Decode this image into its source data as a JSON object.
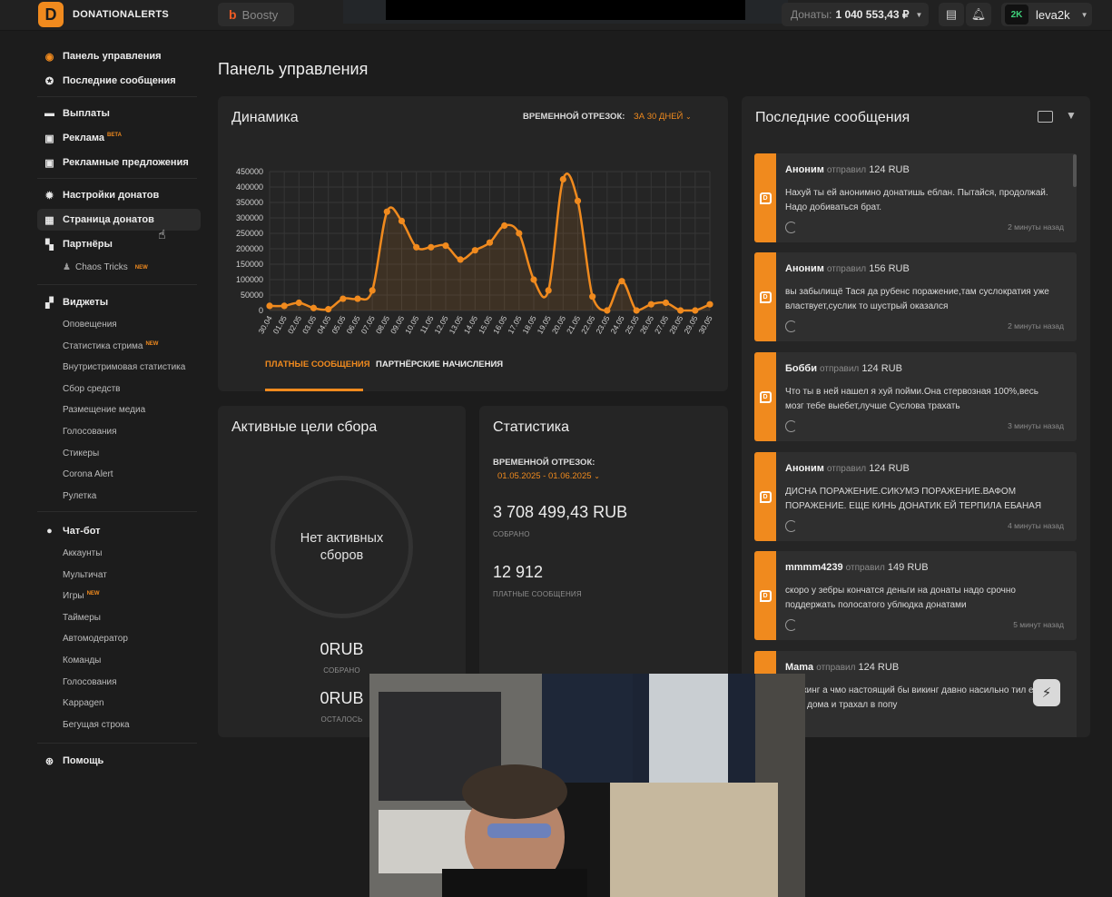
{
  "brand": {
    "name": "DONATIONALERTS",
    "logo_letter": "D",
    "accent": "#f08a1e"
  },
  "topbar": {
    "boosty": "Boosty",
    "balance_label": "Донаты:",
    "balance_value": "1 040 553,43 ₽",
    "user_avatar": "2K",
    "username": "leva2k"
  },
  "sidebar": {
    "items": [
      {
        "label": "Панель управления",
        "icon": "dashboard-icon"
      },
      {
        "label": "Последние сообщения",
        "icon": "star-icon"
      },
      {
        "label": "Выплаты",
        "icon": "wallet-icon"
      },
      {
        "label": "Реклама",
        "badge": "BETA",
        "icon": "briefcase-icon"
      },
      {
        "label": "Рекламные предложения",
        "icon": "briefcase-icon"
      },
      {
        "label": "Настройки донатов",
        "icon": "gear-icon"
      },
      {
        "label": "Страница донатов",
        "icon": "page-icon"
      },
      {
        "label": "Партнёры",
        "icon": "partners-icon"
      },
      {
        "label": "Виджеты",
        "icon": "widgets-icon"
      },
      {
        "label": "Чат-бот",
        "icon": "chat-icon"
      },
      {
        "label": "Помощь",
        "icon": "lifebuoy-icon"
      }
    ],
    "partners_sub": [
      {
        "label": "Chaos Tricks",
        "badge": "NEW"
      }
    ],
    "widgets_sub": [
      {
        "label": "Оповещения"
      },
      {
        "label": "Статистика стрима",
        "badge": "NEW"
      },
      {
        "label": "Внутристримовая статистика"
      },
      {
        "label": "Сбор средств"
      },
      {
        "label": "Размещение медиа"
      },
      {
        "label": "Голосования"
      },
      {
        "label": "Стикеры"
      },
      {
        "label": "Corona Alert"
      },
      {
        "label": "Рулетка"
      }
    ],
    "chatbot_sub": [
      {
        "label": "Аккаунты"
      },
      {
        "label": "Мультичат"
      },
      {
        "label": "Игры",
        "badge": "NEW"
      },
      {
        "label": "Таймеры"
      },
      {
        "label": "Автомодератор"
      },
      {
        "label": "Команды"
      },
      {
        "label": "Голосования"
      },
      {
        "label": "Kappagen"
      },
      {
        "label": "Бегущая строка"
      }
    ]
  },
  "main": {
    "page_title": "Панель управления",
    "dynamics": {
      "title": "Динамика",
      "range_label": "ВРЕМЕННОЙ ОТРЕЗОК:",
      "range_value": "ЗА 30 ДНЕЙ",
      "tab_paid": "ПЛАТНЫЕ СООБЩЕНИЯ",
      "tab_partner": "ПАРТНЁРСКИЕ НАЧИСЛЕНИЯ"
    },
    "goals": {
      "title": "Активные цели сбора",
      "empty": "Нет активных сборов",
      "collected_value": "0RUB",
      "collected_label": "СОБРАНО",
      "left_value": "0RUB",
      "left_label": "ОСТАЛОСЬ"
    },
    "stats": {
      "title": "Статистика",
      "range_label": "ВРЕМЕННОЙ ОТРЕЗОК:",
      "range_value": "01.05.2025 - 01.06.2025",
      "collected_value": "3 708 499,43 RUB",
      "collected_label": "СОБРАНО",
      "messages_value": "12 912",
      "messages_label": "ПЛАТНЫЕ СООБЩЕНИЯ"
    },
    "messages": {
      "title": "Последние сообщения",
      "action": "отправил",
      "items": [
        {
          "name": "Аноним",
          "amount": "124 RUB",
          "text": "Нахуй ты ей анонимно донатишь еблан. Пытайся, продолжай. Надо добиваться брат.",
          "time": "2 минуты назад"
        },
        {
          "name": "Аноним",
          "amount": "156 RUB",
          "text": "вы забылищё Тася да рубенс поражение,там суслократия уже властвует,суслик то шустрый оказался",
          "time": "2 минуты назад"
        },
        {
          "name": "Бобби",
          "amount": "124 RUB",
          "text": "Что ты в ней нашел я хуй пойми.Она стервозная 100%,весь мозг тебе выебет,лучше Суслова трахать",
          "time": "3 минуты назад"
        },
        {
          "name": "Аноним",
          "amount": "124 RUB",
          "text": "ДИСНА ПОРАЖЕНИЕ.СИКУМЭ ПОРАЖЕНИЕ.ВАФОМ ПОРАЖЕНИЕ. ЕЩЕ КИНЬ ДОНАТИК ЕЙ ТЕРПИЛА ЕБАНАЯ",
          "time": "4 минуты назад"
        },
        {
          "name": "mmmm4239",
          "amount": "149 RUB",
          "text": "скоро у зебры кончатся деньги на донаты надо срочно поддержать полосатого ублюдка донатами",
          "time": "5 минут назад"
        },
        {
          "name": "Mama",
          "amount": "124 RUB",
          "text": "е викинг а чмо настоящий бы викинг давно насильно тил её у себя дома и трахал в попу",
          "time": ""
        }
      ]
    }
  },
  "chart_data": {
    "type": "line",
    "title": "",
    "xlabel": "",
    "ylabel": "",
    "ylim": [
      0,
      450000
    ],
    "yticks": [
      0,
      50000,
      100000,
      150000,
      200000,
      250000,
      300000,
      350000,
      400000,
      450000
    ],
    "color": "#f08a1e",
    "categories": [
      "30.04",
      "01.05",
      "02.05",
      "03.05",
      "04.05",
      "05.05",
      "06.05",
      "07.05",
      "08.05",
      "09.05",
      "10.05",
      "11.05",
      "12.05",
      "13.05",
      "14.05",
      "15.05",
      "16.05",
      "17.05",
      "18.05",
      "19.05",
      "20.05",
      "21.05",
      "22.05",
      "23.05",
      "24.05",
      "25.05",
      "26.05",
      "27.05",
      "28.05",
      "29.05",
      "30.05"
    ],
    "series": [
      {
        "values": [
          15000,
          15000,
          25000,
          8000,
          4000,
          38000,
          38000,
          65000,
          320000,
          290000,
          205000,
          205000,
          210000,
          165000,
          195000,
          220000,
          275000,
          250000,
          100000,
          65000,
          425000,
          355000,
          45000,
          0,
          95000,
          0,
          20000,
          25000,
          0,
          0,
          20000
        ]
      }
    ]
  }
}
